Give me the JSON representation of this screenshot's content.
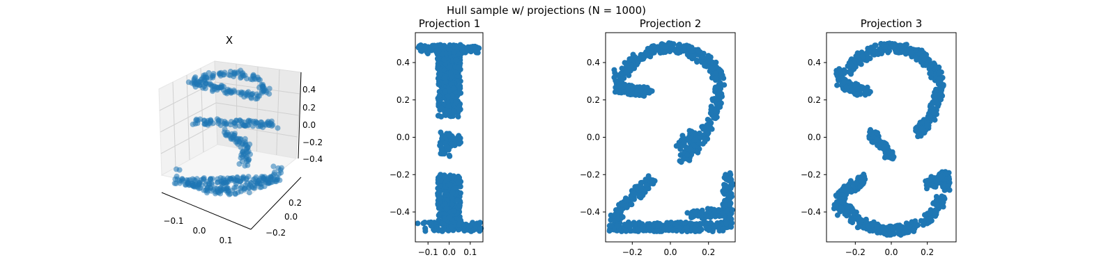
{
  "figure": {
    "suptitle": "Hull sample w/ projections (N = 1000)",
    "point_color": "#1f77b4",
    "background": "#ffffff"
  },
  "chart_data": [
    {
      "type": "scatter",
      "projection": "3d",
      "title": "X",
      "n_points": 1000,
      "x_ticks": [
        "−0.1",
        "0.0",
        "0.1"
      ],
      "y_ticks": [
        "−0.2",
        "0.0",
        "0.2"
      ],
      "z_ticks": [
        "−0.4",
        "−0.2",
        "0.0",
        "0.2",
        "0.4"
      ],
      "xlim": [
        -0.17,
        0.17
      ],
      "ylim": [
        -0.3,
        0.3
      ],
      "zlim": [
        -0.5,
        0.5
      ],
      "alpha": 0.55
    },
    {
      "type": "scatter",
      "title": "Projection 1",
      "n_points": 1000,
      "shape": "digit 1",
      "x_ticks": [
        -0.1,
        0.0,
        0.1
      ],
      "x_tick_labels": [
        "−0.1",
        "0.0",
        "0.1"
      ],
      "y_ticks": [
        -0.4,
        -0.2,
        0.0,
        0.2,
        0.4
      ],
      "y_tick_labels": [
        "−0.4",
        "−0.2",
        "0.0",
        "0.2",
        "0.4"
      ],
      "xlim": [
        -0.16,
        0.16
      ],
      "ylim": [
        -0.56,
        0.56
      ]
    },
    {
      "type": "scatter",
      "title": "Projection 2",
      "n_points": 1000,
      "shape": "digit 2",
      "x_ticks": [
        -0.2,
        0.0,
        0.2
      ],
      "x_tick_labels": [
        "−0.2",
        "0.0",
        "0.2"
      ],
      "y_ticks": [
        -0.4,
        -0.2,
        0.0,
        0.2,
        0.4
      ],
      "y_tick_labels": [
        "−0.4",
        "−0.2",
        "0.0",
        "0.2",
        "0.4"
      ],
      "xlim": [
        -0.34,
        0.34
      ],
      "ylim": [
        -0.56,
        0.56
      ]
    },
    {
      "type": "scatter",
      "title": "Projection 3",
      "n_points": 1000,
      "shape": "digit 3",
      "x_ticks": [
        -0.2,
        0.0,
        0.2
      ],
      "x_tick_labels": [
        "−0.2",
        "0.0",
        "0.2"
      ],
      "y_ticks": [
        -0.4,
        -0.2,
        0.0,
        0.2,
        0.4
      ],
      "y_tick_labels": [
        "−0.4",
        "−0.2",
        "0.0",
        "0.2",
        "0.4"
      ],
      "xlim": [
        -0.36,
        0.36
      ],
      "ylim": [
        -0.56,
        0.56
      ]
    }
  ]
}
